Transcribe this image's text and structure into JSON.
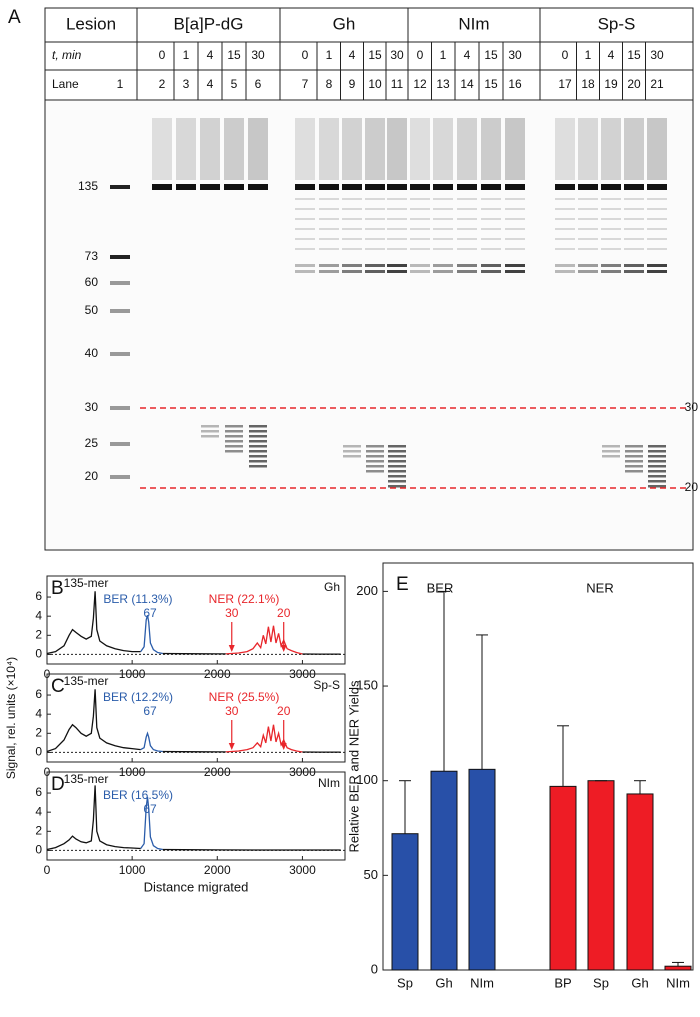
{
  "gel": {
    "panel_label": "A",
    "lesion_header": "Lesion",
    "time_header": "t, min",
    "lane_header": "Lane",
    "marker_lane": 1,
    "groups": [
      {
        "name": "B[a]P-dG",
        "times": [
          0,
          1,
          4,
          15,
          30
        ],
        "lanes": [
          2,
          3,
          4,
          5,
          6
        ]
      },
      {
        "name": "Gh",
        "times": [
          0,
          1,
          4,
          15,
          30
        ],
        "lanes": [
          7,
          8,
          9,
          10,
          11
        ]
      },
      {
        "name": "NIm",
        "times": [
          0,
          1,
          4,
          15,
          30
        ],
        "lanes": [
          12,
          13,
          14,
          15,
          16
        ]
      },
      {
        "name": "Sp-S",
        "times": [
          0,
          1,
          4,
          15,
          30
        ],
        "lanes": [
          17,
          18,
          19,
          20,
          21
        ]
      }
    ],
    "marker_sizes": [
      135,
      73,
      60,
      50,
      40,
      30,
      25,
      20
    ],
    "cutoff_sizes": [
      30,
      20
    ]
  },
  "chart_data": [
    {
      "type": "line",
      "panel_label": "B",
      "sample": "Gh",
      "peak_label": "135-mer",
      "ber_label": "BER (11.3%)",
      "ber_size": "67",
      "ner_label": "NER (22.1%)",
      "ner_sizes": [
        "30",
        "20"
      ],
      "xlim": [
        0,
        3500
      ],
      "xticks": [
        0,
        1000,
        2000,
        3000
      ],
      "ylim": [
        -1,
        8.2
      ],
      "yticks": [
        0,
        2,
        4,
        6
      ],
      "series": [
        {
          "color": "#111111",
          "x": [
            0,
            100,
            200,
            260,
            300,
            340,
            400,
            460,
            520,
            545,
            565,
            585,
            620,
            700,
            800,
            900,
            1000,
            1100
          ],
          "values": [
            0.1,
            0.3,
            0.9,
            2.0,
            2.6,
            2.3,
            1.9,
            1.6,
            1.9,
            3.8,
            6.6,
            2.6,
            1.4,
            0.9,
            0.6,
            0.4,
            0.3,
            0.3
          ]
        },
        {
          "color": "#2a5caa",
          "x": [
            1100,
            1140,
            1165,
            1180,
            1195,
            1215,
            1250,
            1300,
            1360
          ],
          "values": [
            0.3,
            0.8,
            3.6,
            4.1,
            3.4,
            1.2,
            0.5,
            0.2,
            0.1
          ]
        },
        {
          "color": "#111111",
          "x": [
            1360,
            1600,
            1800,
            2000,
            2100
          ],
          "values": [
            0.1,
            0.08,
            0.07,
            0.06,
            0.06
          ]
        },
        {
          "color": "#e8262b",
          "x": [
            2100,
            2250,
            2350,
            2420,
            2470,
            2510,
            2540,
            2570,
            2600,
            2630,
            2660,
            2690,
            2720,
            2750,
            2780,
            2820,
            2870,
            2930,
            3000
          ],
          "values": [
            0.06,
            0.15,
            0.3,
            0.6,
            1.2,
            0.7,
            2.0,
            1.1,
            2.9,
            1.3,
            3.0,
            1.2,
            2.2,
            0.9,
            1.5,
            0.6,
            0.4,
            0.2,
            0.05
          ]
        },
        {
          "color": "#111111",
          "x": [
            3000,
            3200,
            3450
          ],
          "values": [
            0.05,
            0.04,
            0.04
          ]
        }
      ]
    },
    {
      "type": "line",
      "panel_label": "C",
      "sample": "Sp-S",
      "peak_label": "135-mer",
      "ber_label": "BER (12.2%)",
      "ber_size": "67",
      "ner_label": "NER (25.5%)",
      "ner_sizes": [
        "30",
        "20"
      ],
      "ylabel": "Signal, rel. units (×10⁴)",
      "xlim": [
        0,
        3500
      ],
      "xticks": [
        0,
        1000,
        2000,
        3000
      ],
      "ylim": [
        -1,
        8.2
      ],
      "yticks": [
        0,
        2,
        4,
        6
      ],
      "series": [
        {
          "color": "#111111",
          "x": [
            0,
            100,
            200,
            260,
            300,
            340,
            400,
            460,
            520,
            545,
            565,
            585,
            620,
            700,
            800,
            900,
            1000,
            1100
          ],
          "values": [
            0.1,
            0.4,
            1.3,
            2.4,
            2.9,
            2.6,
            2.0,
            1.7,
            2.0,
            3.8,
            6.6,
            2.6,
            1.5,
            1.0,
            0.7,
            0.5,
            0.4,
            0.3
          ]
        },
        {
          "color": "#2a5caa",
          "x": [
            1100,
            1140,
            1165,
            1180,
            1195,
            1215,
            1250,
            1300,
            1360
          ],
          "values": [
            0.3,
            0.5,
            1.6,
            2.0,
            1.6,
            0.7,
            0.3,
            0.15,
            0.1
          ]
        },
        {
          "color": "#111111",
          "x": [
            1360,
            1600,
            1800,
            2000,
            2100
          ],
          "values": [
            0.1,
            0.08,
            0.07,
            0.06,
            0.06
          ]
        },
        {
          "color": "#e8262b",
          "x": [
            2100,
            2250,
            2350,
            2420,
            2470,
            2510,
            2540,
            2570,
            2600,
            2630,
            2660,
            2690,
            2720,
            2750,
            2780,
            2820,
            2870,
            2930,
            3000
          ],
          "values": [
            0.06,
            0.15,
            0.3,
            0.5,
            1.0,
            0.6,
            1.8,
            1.0,
            2.7,
            1.2,
            2.9,
            1.1,
            2.0,
            0.8,
            1.3,
            0.5,
            0.3,
            0.15,
            0.05
          ]
        },
        {
          "color": "#111111",
          "x": [
            3000,
            3200,
            3450
          ],
          "values": [
            0.05,
            0.04,
            0.04
          ]
        }
      ]
    },
    {
      "type": "line",
      "panel_label": "D",
      "sample": "NIm",
      "peak_label": "135-mer",
      "ber_label": "BER (16.5%)",
      "ber_size": "67",
      "xlabel": "Distance migrated",
      "xlim": [
        0,
        3500
      ],
      "xticks": [
        0,
        1000,
        2000,
        3000
      ],
      "ylim": [
        -1,
        8.2
      ],
      "yticks": [
        0,
        2,
        4,
        6
      ],
      "series": [
        {
          "color": "#111111",
          "x": [
            0,
            100,
            200,
            260,
            300,
            340,
            400,
            460,
            520,
            545,
            565,
            585,
            620,
            700,
            800,
            900,
            1000,
            1100
          ],
          "values": [
            0.1,
            0.3,
            0.7,
            1.1,
            1.5,
            1.2,
            0.9,
            0.8,
            1.0,
            3.2,
            6.8,
            2.0,
            1.0,
            0.6,
            0.4,
            0.3,
            0.25,
            0.2
          ]
        },
        {
          "color": "#2a5caa",
          "x": [
            1100,
            1140,
            1165,
            1180,
            1195,
            1215,
            1250,
            1300,
            1360
          ],
          "values": [
            0.2,
            0.7,
            4.5,
            5.6,
            4.4,
            1.4,
            0.5,
            0.2,
            0.1
          ]
        },
        {
          "color": "#111111",
          "x": [
            1360,
            1600,
            2000,
            2500,
            3000,
            3450
          ],
          "values": [
            0.1,
            0.08,
            0.06,
            0.05,
            0.05,
            0.05
          ]
        }
      ]
    },
    {
      "type": "bar",
      "panel_label": "E",
      "ylabel": "Relative BER and NER Yields",
      "ylim": [
        0,
        215
      ],
      "yticks": [
        0,
        50,
        100,
        150,
        200
      ],
      "series": [
        {
          "name": "BER",
          "color": "#2850a8",
          "categories": [
            "Sp",
            "Gh",
            "NIm"
          ],
          "values": [
            72,
            105,
            106
          ],
          "errors": [
            28,
            95,
            71
          ]
        },
        {
          "name": "NER",
          "color": "#ee1c25",
          "categories": [
            "BP",
            "Sp",
            "Gh",
            "NIm"
          ],
          "values": [
            97,
            100,
            93,
            2
          ],
          "errors": [
            32,
            0,
            7,
            2
          ]
        }
      ]
    }
  ]
}
